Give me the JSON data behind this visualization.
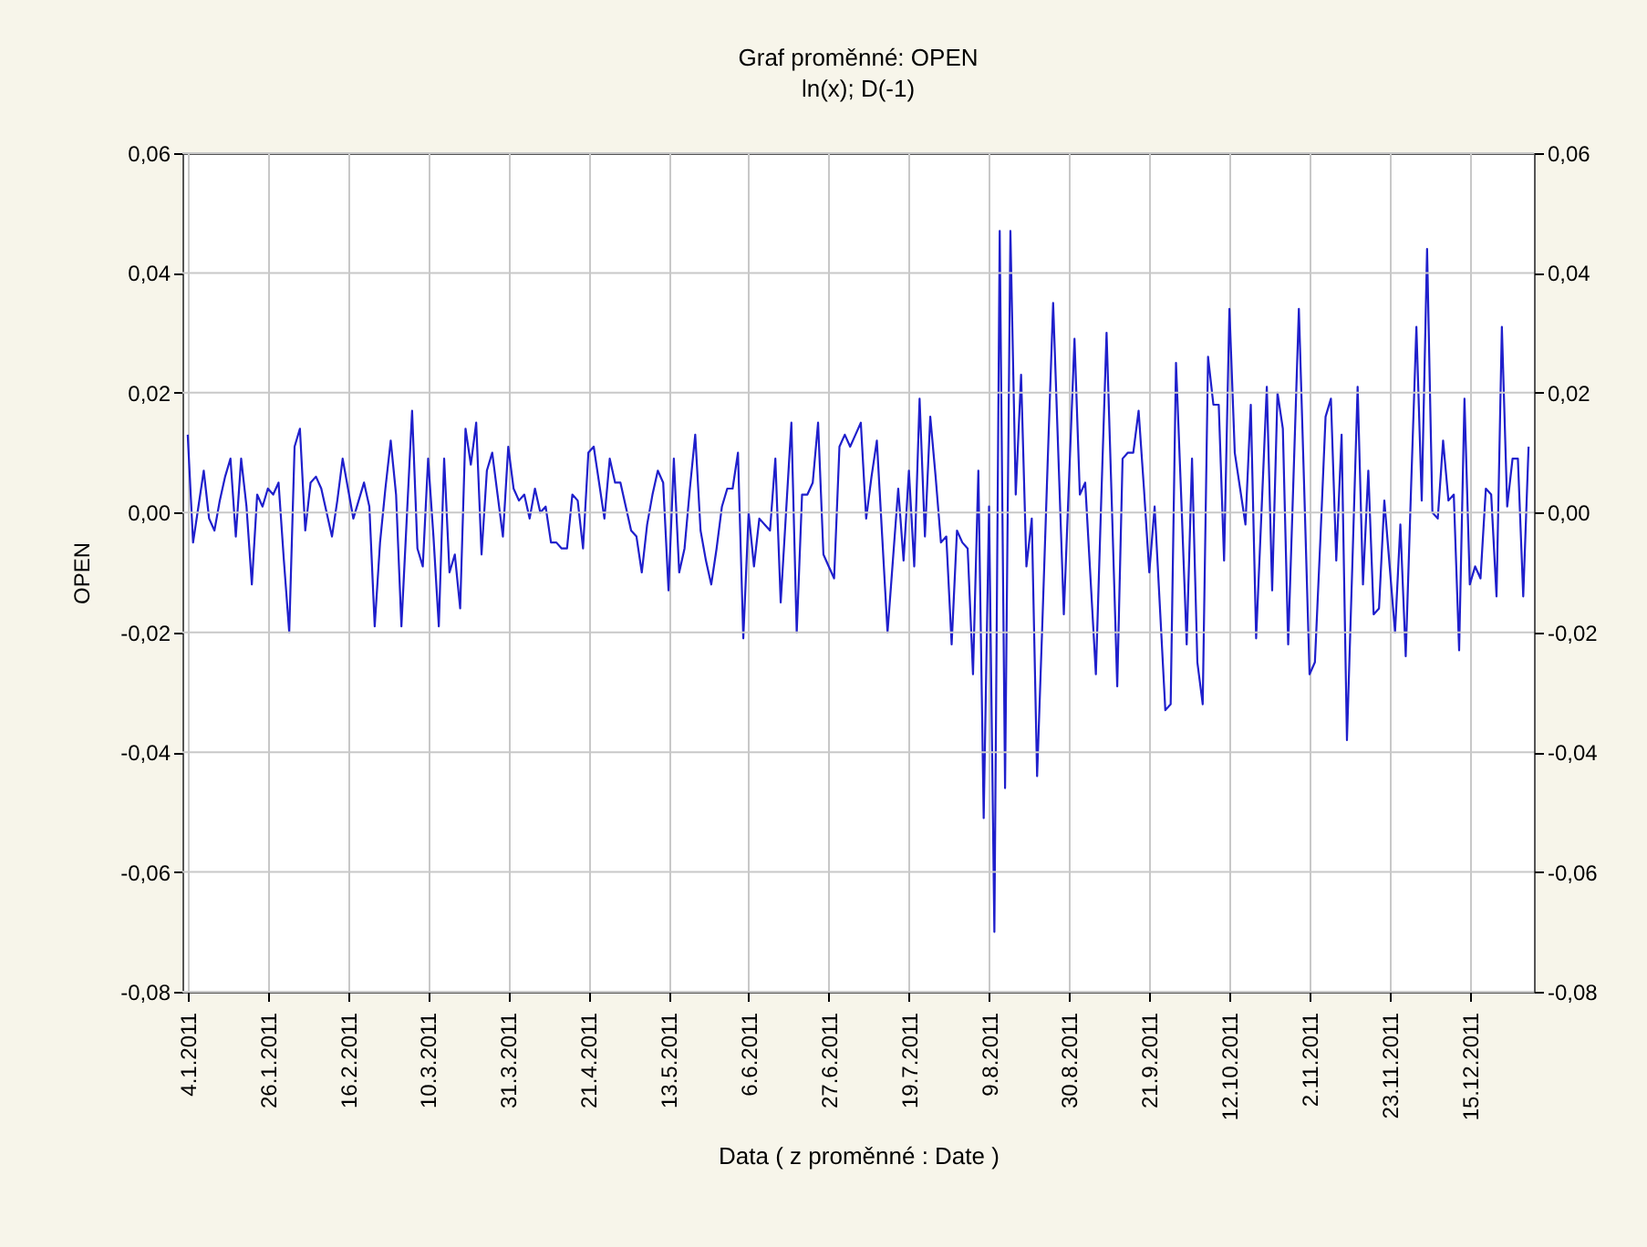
{
  "chart_data": {
    "type": "line",
    "title": "Graf proměnné: OPEN",
    "subtitle": "ln(x); D(-1)",
    "xlabel": "Data ( z proměnné : Date )",
    "ylabel": "OPEN",
    "categories": [
      "4.1.2011",
      null,
      null,
      null,
      null,
      null,
      null,
      null,
      null,
      null,
      null,
      null,
      null,
      null,
      null,
      "26.1.2011",
      null,
      null,
      null,
      null,
      null,
      null,
      null,
      null,
      null,
      null,
      null,
      null,
      null,
      null,
      "16.2.2011",
      null,
      null,
      null,
      null,
      null,
      null,
      null,
      null,
      null,
      null,
      null,
      null,
      null,
      null,
      "10.3.2011",
      null,
      null,
      null,
      null,
      null,
      null,
      null,
      null,
      null,
      null,
      null,
      null,
      null,
      null,
      "31.3.2011",
      null,
      null,
      null,
      null,
      null,
      null,
      null,
      null,
      null,
      null,
      null,
      null,
      null,
      null,
      "21.4.2011",
      null,
      null,
      null,
      null,
      null,
      null,
      null,
      null,
      null,
      null,
      null,
      null,
      null,
      null,
      "13.5.2011",
      null,
      null,
      null,
      null,
      null,
      null,
      null,
      null,
      null,
      null,
      null,
      null,
      null,
      null,
      "6.6.2011",
      null,
      null,
      null,
      null,
      null,
      null,
      null,
      null,
      null,
      null,
      null,
      null,
      null,
      null,
      "27.6.2011",
      null,
      null,
      null,
      null,
      null,
      null,
      null,
      null,
      null,
      null,
      null,
      null,
      null,
      null,
      "19.7.2011",
      null,
      null,
      null,
      null,
      null,
      null,
      null,
      null,
      null,
      null,
      null,
      null,
      null,
      null,
      "9.8.2011",
      null,
      null,
      null,
      null,
      null,
      null,
      null,
      null,
      null,
      null,
      null,
      null,
      null,
      null,
      "30.8.2011",
      null,
      null,
      null,
      null,
      null,
      null,
      null,
      null,
      null,
      null,
      null,
      null,
      null,
      null,
      "21.9.2011",
      null,
      null,
      null,
      null,
      null,
      null,
      null,
      null,
      null,
      null,
      null,
      null,
      null,
      null,
      "12.10.2011",
      null,
      null,
      null,
      null,
      null,
      null,
      null,
      null,
      null,
      null,
      null,
      null,
      null,
      null,
      "2.11.2011",
      null,
      null,
      null,
      null,
      null,
      null,
      null,
      null,
      null,
      null,
      null,
      null,
      null,
      null,
      "23.11.2011",
      null,
      null,
      null,
      null,
      null,
      null,
      null,
      null,
      null,
      null,
      null,
      null,
      null,
      null,
      "15.12.2011",
      null,
      null,
      null,
      null,
      null,
      null,
      null,
      null,
      null,
      null,
      null
    ],
    "values": [
      0.013,
      -0.005,
      0.001,
      0.007,
      -0.001,
      -0.003,
      0.002,
      0.006,
      0.009,
      -0.004,
      0.009,
      0.001,
      -0.012,
      0.003,
      0.001,
      0.004,
      0.003,
      0.005,
      -0.008,
      -0.02,
      0.011,
      0.014,
      -0.003,
      0.005,
      0.006,
      0.004,
      0.0,
      -0.004,
      0.002,
      0.009,
      0.004,
      -0.001,
      0.002,
      0.005,
      0.001,
      -0.019,
      -0.005,
      0.004,
      0.012,
      0.003,
      -0.019,
      -0.001,
      0.017,
      -0.006,
      -0.009,
      0.009,
      -0.004,
      -0.019,
      0.009,
      -0.01,
      -0.007,
      -0.016,
      0.014,
      0.008,
      0.015,
      -0.007,
      0.007,
      0.01,
      0.003,
      -0.004,
      0.011,
      0.004,
      0.002,
      0.003,
      -0.001,
      0.004,
      0.0,
      0.001,
      -0.005,
      -0.005,
      -0.006,
      -0.006,
      0.003,
      0.002,
      -0.006,
      0.01,
      0.011,
      0.005,
      -0.001,
      0.009,
      0.005,
      0.005,
      0.001,
      -0.003,
      -0.004,
      -0.01,
      -0.002,
      0.003,
      0.007,
      0.005,
      -0.013,
      0.009,
      -0.01,
      -0.006,
      0.004,
      0.013,
      -0.003,
      -0.008,
      -0.012,
      -0.006,
      0.001,
      0.004,
      0.004,
      0.01,
      -0.021,
      0.0,
      -0.009,
      -0.001,
      -0.002,
      -0.003,
      0.009,
      -0.015,
      0.0,
      0.015,
      -0.02,
      0.003,
      0.003,
      0.005,
      0.015,
      -0.007,
      -0.009,
      -0.011,
      0.011,
      0.013,
      0.011,
      0.013,
      0.015,
      -0.001,
      0.006,
      0.012,
      -0.004,
      -0.02,
      -0.008,
      0.004,
      -0.008,
      0.007,
      -0.009,
      0.019,
      -0.004,
      0.016,
      0.006,
      -0.005,
      -0.004,
      -0.022,
      -0.003,
      -0.005,
      -0.006,
      -0.027,
      0.007,
      -0.051,
      0.001,
      -0.07,
      0.047,
      -0.046,
      0.047,
      0.003,
      0.023,
      -0.009,
      -0.001,
      -0.044,
      -0.018,
      0.009,
      0.035,
      0.009,
      -0.017,
      0.006,
      0.029,
      0.003,
      0.005,
      -0.011,
      -0.027,
      0.002,
      0.03,
      0.001,
      -0.029,
      0.009,
      0.01,
      0.01,
      0.017,
      0.004,
      -0.01,
      0.001,
      -0.016,
      -0.033,
      -0.032,
      0.025,
      0.002,
      -0.022,
      0.009,
      -0.025,
      -0.032,
      0.026,
      0.018,
      0.018,
      -0.008,
      0.034,
      0.01,
      0.004,
      -0.002,
      0.018,
      -0.021,
      0.0,
      0.021,
      -0.013,
      0.02,
      0.014,
      -0.022,
      0.006,
      0.034,
      0.004,
      -0.027,
      -0.025,
      -0.005,
      0.016,
      0.019,
      -0.008,
      0.013,
      -0.038,
      -0.009,
      0.021,
      -0.012,
      0.007,
      -0.017,
      -0.016,
      0.002,
      -0.009,
      -0.02,
      -0.002,
      -0.024,
      0.004,
      0.031,
      0.002,
      0.044,
      0.0,
      -0.001,
      0.012,
      0.002,
      0.003,
      -0.023,
      0.019,
      -0.012,
      -0.009,
      -0.011,
      0.004,
      0.003,
      -0.014,
      0.031,
      0.001,
      0.009,
      0.009,
      -0.014,
      0.011
    ],
    "color": "#1f1fcc",
    "ylim": [
      -0.08,
      0.06
    ],
    "yticks": [
      {
        "value": -0.08,
        "label": "-0,08"
      },
      {
        "value": -0.06,
        "label": "-0,06"
      },
      {
        "value": -0.04,
        "label": "-0,04"
      },
      {
        "value": -0.02,
        "label": "-0,02"
      },
      {
        "value": 0,
        "label": "0,00"
      },
      {
        "value": 0.02,
        "label": "0,02"
      },
      {
        "value": 0.04,
        "label": "0,04"
      },
      {
        "value": 0.06,
        "label": "0,06"
      }
    ],
    "y2lim": [
      -0.08,
      0.06
    ],
    "y2ticks": [
      {
        "value": -0.08,
        "label": "-0,08"
      },
      {
        "value": -0.06,
        "label": "-0,06"
      },
      {
        "value": -0.04,
        "label": "-0,04"
      },
      {
        "value": -0.02,
        "label": "-0,02"
      },
      {
        "value": 0,
        "label": "0,00"
      },
      {
        "value": 0.02,
        "label": "0,02"
      },
      {
        "value": 0.04,
        "label": "0,04"
      },
      {
        "value": 0.06,
        "label": "0,06"
      }
    ],
    "grid": true,
    "line_style": "solid"
  }
}
